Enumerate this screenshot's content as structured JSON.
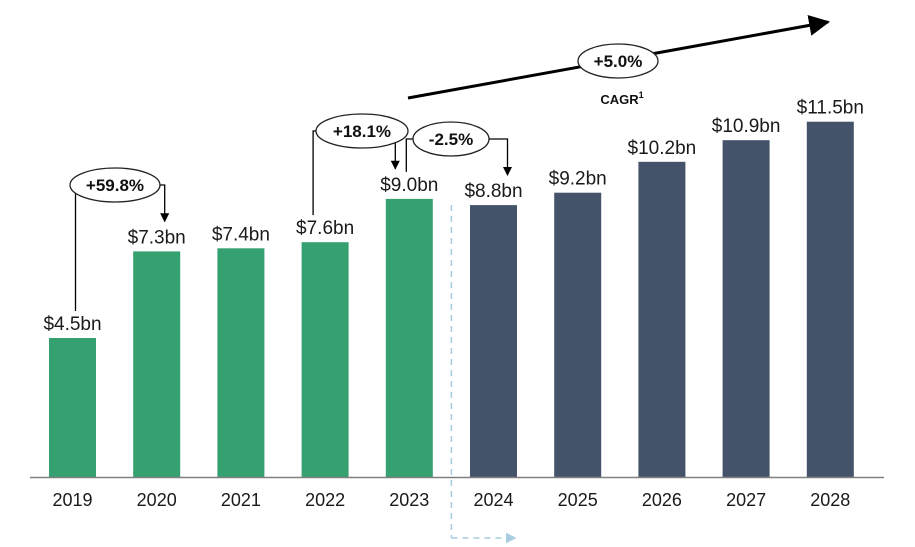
{
  "chart_data": {
    "type": "bar",
    "categories": [
      "2019",
      "2020",
      "2021",
      "2022",
      "2023",
      "2024",
      "2025",
      "2026",
      "2027",
      "2028"
    ],
    "values": [
      4.5,
      7.3,
      7.4,
      7.6,
      9.0,
      8.8,
      9.2,
      10.2,
      10.9,
      11.5
    ],
    "value_labels": [
      "$4.5bn",
      "$7.3bn",
      "$7.4bn",
      "$7.6bn",
      "$9.0bn",
      "$8.8bn",
      "$9.2bn",
      "$10.2bn",
      "$10.9bn",
      "$11.5bn"
    ],
    "colors": {
      "actual": "#35a070",
      "forecast": "#445369",
      "axis": "#808080",
      "divider": "#a8cce0",
      "arrow": "#000000"
    },
    "actual_count": 5,
    "ylim": [
      0,
      12
    ],
    "growth_annotations": [
      {
        "label": "+59.8%",
        "from": "2019",
        "to": "2020"
      },
      {
        "label": "+18.1%",
        "from": "2022",
        "to": "2023"
      },
      {
        "label": "-2.5%",
        "from": "2023",
        "to": "2024"
      }
    ],
    "cagr": {
      "value": "+5.0%",
      "label": "CAGR",
      "footnote": "1"
    },
    "grid": false,
    "legend": "none"
  }
}
